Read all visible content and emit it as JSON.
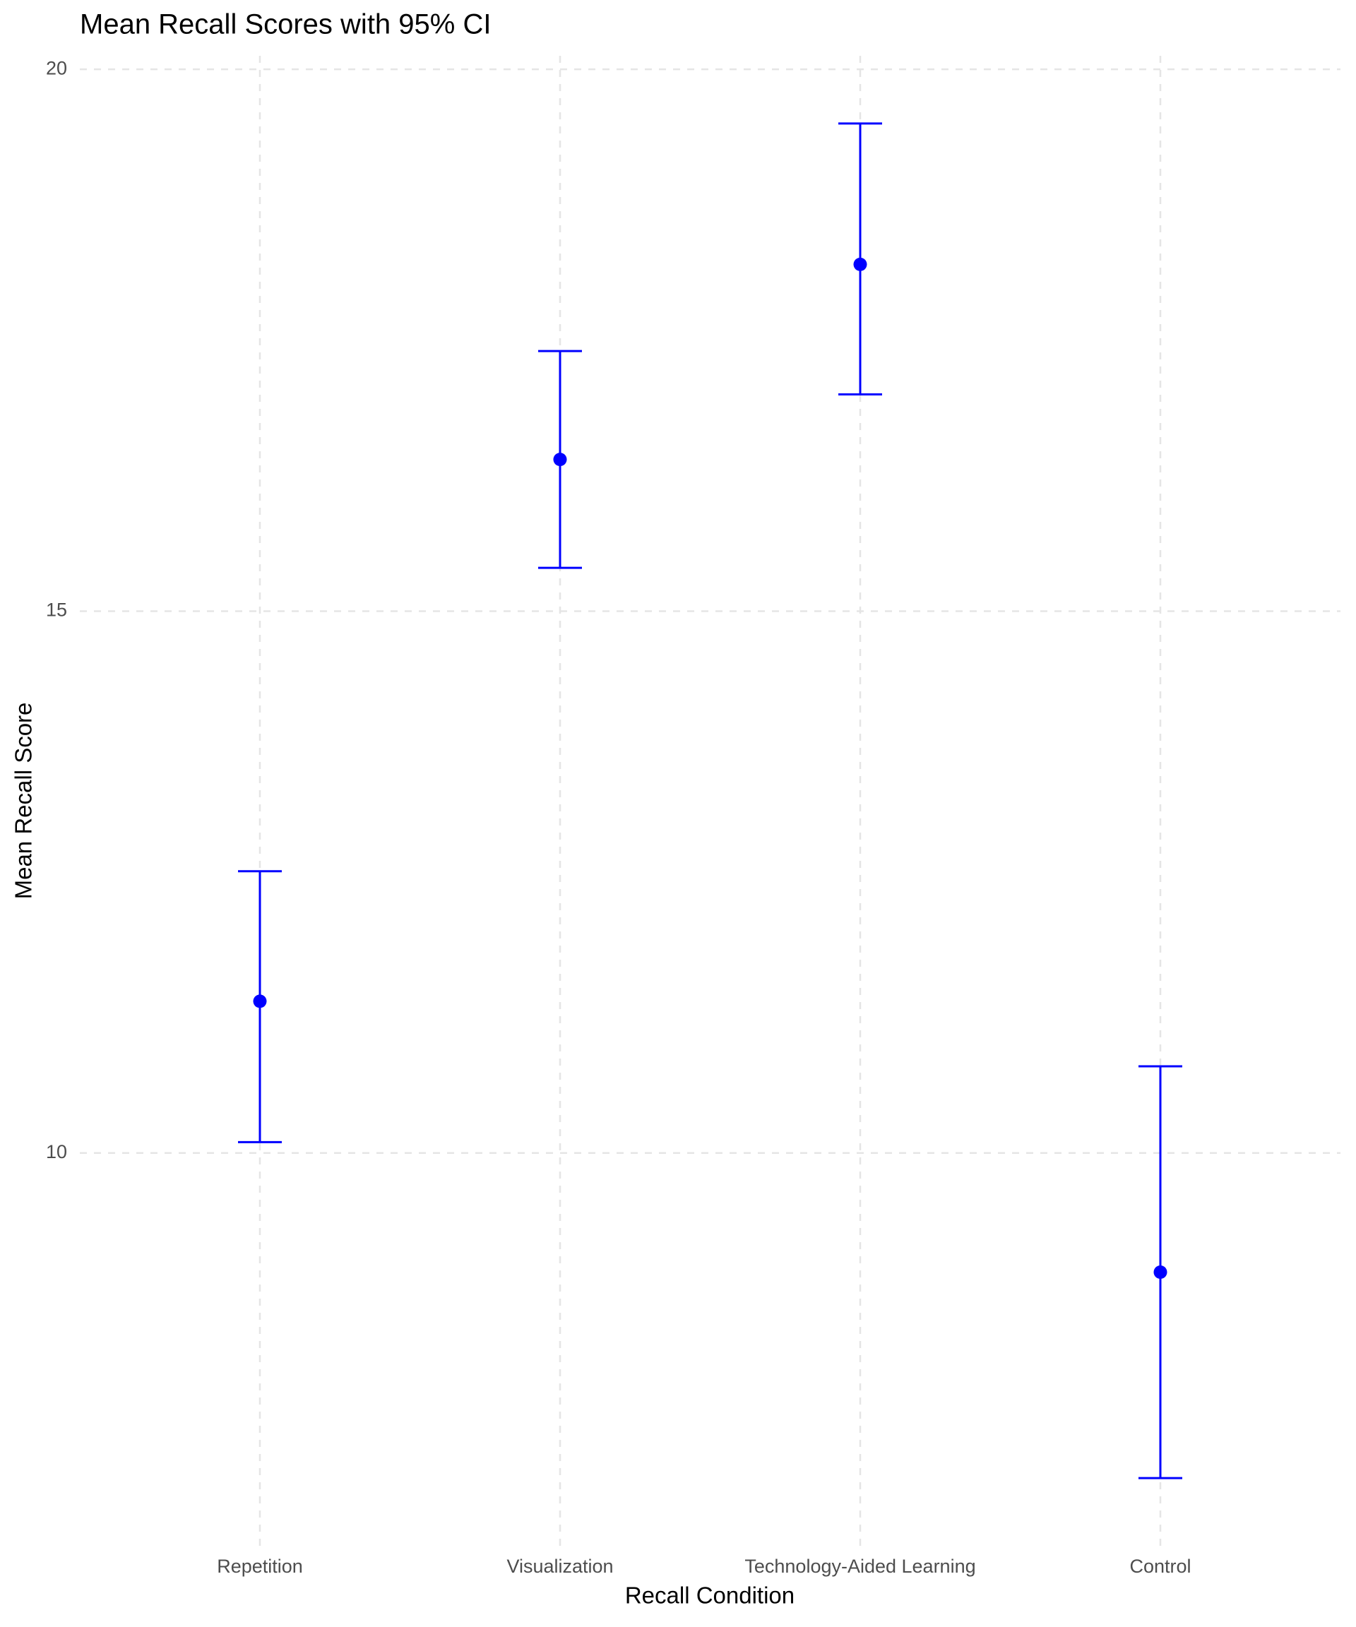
{
  "chart_data": {
    "type": "errorbar",
    "title": "Mean Recall Scores with 95% CI",
    "x_label": "Recall Condition",
    "y_label": "Mean Recall Score",
    "categories": [
      "Repetition",
      "Visualization",
      "Technology-Aided Learning",
      "Control"
    ],
    "series": [
      {
        "color": "#0000ff",
        "values": [
          11.4,
          16.4,
          18.2,
          8.9
        ],
        "lower": [
          10.1,
          15.4,
          17.0,
          7.0
        ],
        "upper": [
          12.6,
          17.4,
          19.5,
          10.8
        ]
      }
    ],
    "ylim": [
      6.375,
      20.125
    ],
    "yticks": [
      10,
      15,
      20
    ],
    "grid": true
  }
}
